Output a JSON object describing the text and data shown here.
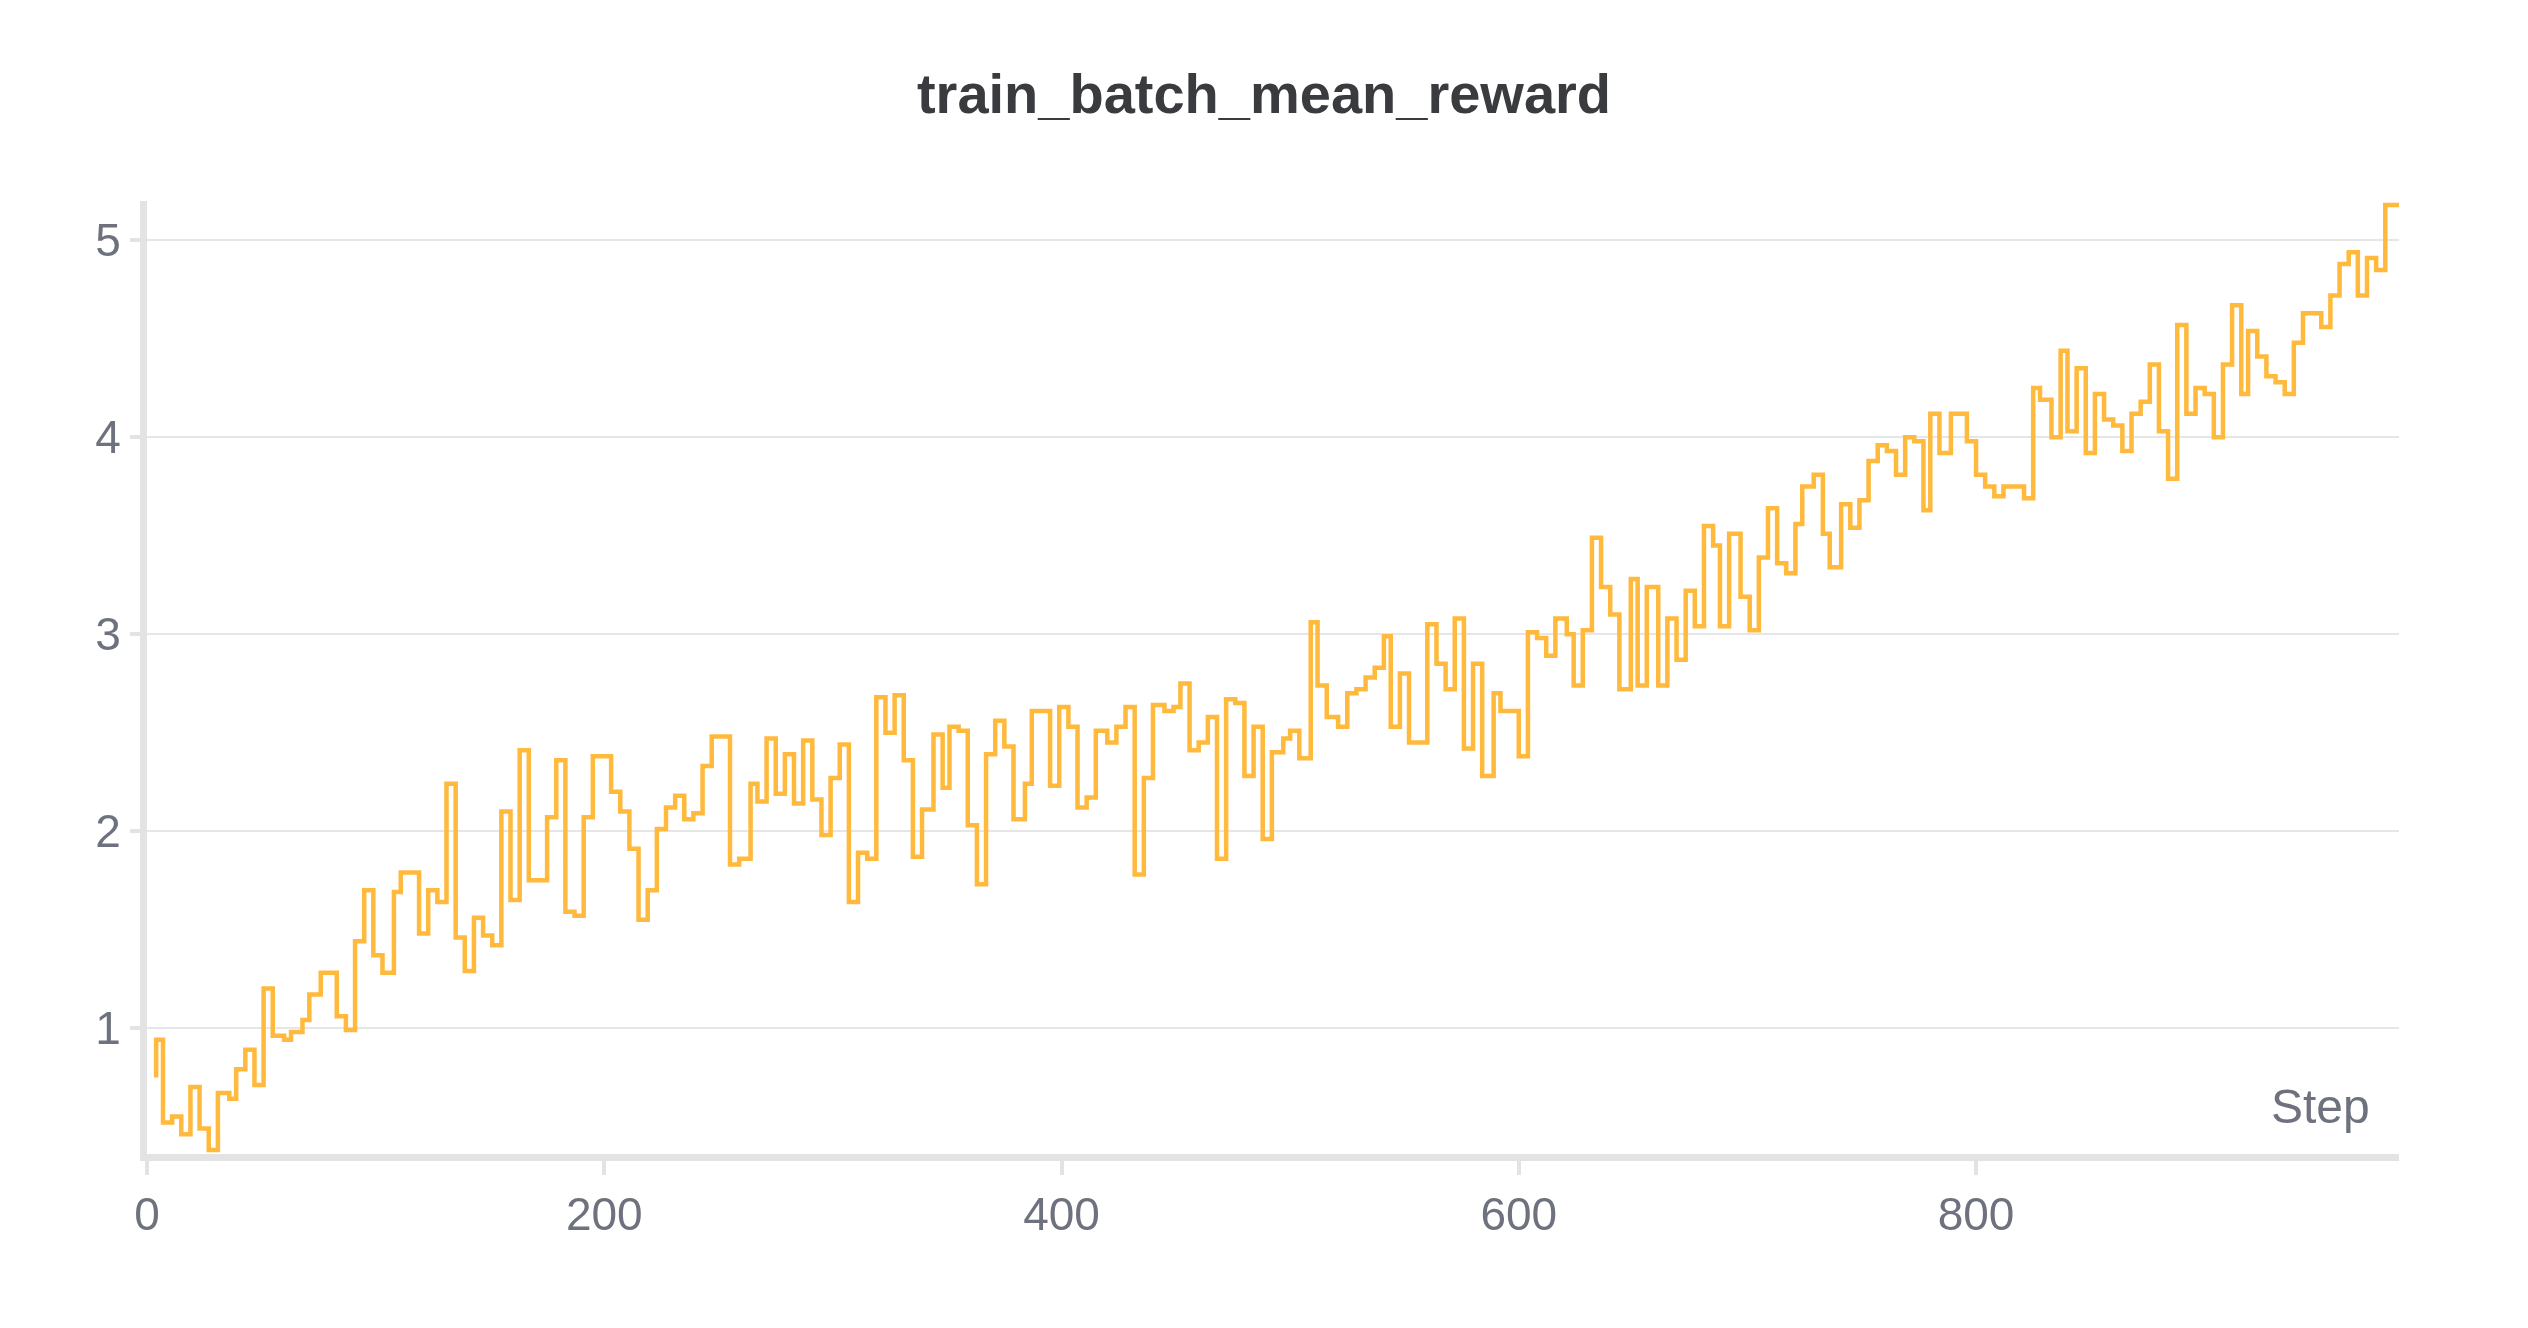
{
  "chart_data": {
    "type": "step",
    "title": "train_batch_mean_reward",
    "xlabel": "Step",
    "xlim": [
      0,
      985
    ],
    "ylim": [
      0.36,
      5.2
    ],
    "xticks": [
      0,
      200,
      400,
      600,
      800
    ],
    "yticks": [
      1,
      2,
      3,
      4,
      5
    ],
    "grid": "y",
    "line_style": "solid",
    "series": [
      {
        "color": "#ffb93c",
        "x": [
          3,
          4,
          7,
          11,
          15,
          19,
          23,
          27,
          31,
          36,
          39,
          43,
          47,
          51,
          55,
          60,
          63,
          68,
          71,
          76,
          83,
          87,
          91,
          95,
          99,
          103,
          108,
          111,
          119,
          123,
          127,
          131,
          135,
          139,
          143,
          147,
          151,
          155,
          159,
          163,
          167,
          175,
          179,
          183,
          187,
          191,
          195,
          203,
          207,
          211,
          215,
          219,
          223,
          227,
          231,
          235,
          239,
          243,
          247,
          255,
          259,
          264,
          267,
          271,
          275,
          279,
          283,
          287,
          291,
          295,
          299,
          303,
          307,
          311,
          315,
          319,
          323,
          327,
          331,
          335,
          339,
          344,
          348,
          351,
          355,
          359,
          363,
          367,
          371,
          375,
          379,
          384,
          387,
          395,
          399,
          403,
          407,
          411,
          415,
          420,
          424,
          428,
          432,
          436,
          440,
          445,
          449,
          452,
          456,
          460,
          464,
          468,
          472,
          476,
          480,
          484,
          488,
          492,
          497,
          500,
          504,
          509,
          512,
          516,
          521,
          525,
          529,
          533,
          537,
          541,
          544,
          548,
          552,
          560,
          564,
          568,
          572,
          576,
          580,
          584,
          589,
          592,
          600,
          604,
          608,
          612,
          616,
          621,
          624,
          628,
          632,
          636,
          640,
          644,
          649,
          652,
          656,
          661,
          665,
          669,
          673,
          677,
          681,
          685,
          688,
          692,
          697,
          701,
          705,
          709,
          713,
          717,
          721,
          724,
          729,
          733,
          736,
          741,
          745,
          749,
          753,
          757,
          761,
          765,
          769,
          773,
          777,
          780,
          784,
          789,
          796,
          800,
          804,
          808,
          812,
          821,
          825,
          828,
          833,
          837,
          840,
          844,
          848,
          852,
          856,
          860,
          864,
          868,
          872,
          876,
          880,
          884,
          888,
          892,
          896,
          900,
          904,
          908,
          912,
          916,
          919,
          923,
          927,
          931,
          935,
          939,
          943,
          951,
          955,
          959,
          963,
          967,
          971,
          975,
          979,
          985
        ],
        "values": [
          0.76,
          0.94,
          0.52,
          0.55,
          0.46,
          0.7,
          0.49,
          0.38,
          0.67,
          0.64,
          0.79,
          0.89,
          0.71,
          1.2,
          0.96,
          0.94,
          0.98,
          1.04,
          1.17,
          1.28,
          1.06,
          0.99,
          1.44,
          1.7,
          1.37,
          1.28,
          1.69,
          1.79,
          1.48,
          1.7,
          1.64,
          2.24,
          1.46,
          1.29,
          1.56,
          1.47,
          1.42,
          2.1,
          1.65,
          2.41,
          1.75,
          2.07,
          2.36,
          1.59,
          1.57,
          2.07,
          2.38,
          2.2,
          2.1,
          1.91,
          1.55,
          1.7,
          2.01,
          2.12,
          2.18,
          2.06,
          2.09,
          2.33,
          2.48,
          1.83,
          1.86,
          2.24,
          2.15,
          2.47,
          2.19,
          2.39,
          2.14,
          2.46,
          2.16,
          1.98,
          2.27,
          2.44,
          1.64,
          1.89,
          1.86,
          2.68,
          2.5,
          2.69,
          2.36,
          1.87,
          2.11,
          2.49,
          2.22,
          2.53,
          2.51,
          2.03,
          1.73,
          2.39,
          2.56,
          2.43,
          2.06,
          2.24,
          2.61,
          2.23,
          2.63,
          2.53,
          2.12,
          2.17,
          2.51,
          2.45,
          2.53,
          2.63,
          1.78,
          2.27,
          2.64,
          2.61,
          2.63,
          2.75,
          2.41,
          2.45,
          2.58,
          1.86,
          2.67,
          2.65,
          2.28,
          2.53,
          1.96,
          2.4,
          2.47,
          2.51,
          2.37,
          3.06,
          2.74,
          2.58,
          2.53,
          2.7,
          2.72,
          2.78,
          2.83,
          2.99,
          2.53,
          2.8,
          2.45,
          3.05,
          2.85,
          2.72,
          3.08,
          2.42,
          2.85,
          2.28,
          2.7,
          2.61,
          2.38,
          3.01,
          2.98,
          2.89,
          3.08,
          3.0,
          2.74,
          3.02,
          3.49,
          3.24,
          3.1,
          2.72,
          3.28,
          2.74,
          3.24,
          2.74,
          3.08,
          2.87,
          3.22,
          3.04,
          3.55,
          3.45,
          3.04,
          3.51,
          3.19,
          3.02,
          3.39,
          3.64,
          3.36,
          3.31,
          3.56,
          3.75,
          3.81,
          3.51,
          3.34,
          3.66,
          3.54,
          3.68,
          3.88,
          3.96,
          3.93,
          3.81,
          4.0,
          3.98,
          3.63,
          4.12,
          3.92,
          4.12,
          3.98,
          3.81,
          3.75,
          3.7,
          3.75,
          3.69,
          4.25,
          4.19,
          4.0,
          4.44,
          4.03,
          4.35,
          3.92,
          4.22,
          4.09,
          4.06,
          3.93,
          4.12,
          4.18,
          4.37,
          4.03,
          3.79,
          4.57,
          4.12,
          4.25,
          4.22,
          4.0,
          4.37,
          4.67,
          4.22,
          4.54,
          4.41,
          4.31,
          4.28,
          4.22,
          4.48,
          4.63,
          4.56,
          4.72,
          4.88,
          4.94,
          4.72,
          4.91,
          4.85,
          5.18,
          5.18
        ]
      }
    ]
  }
}
